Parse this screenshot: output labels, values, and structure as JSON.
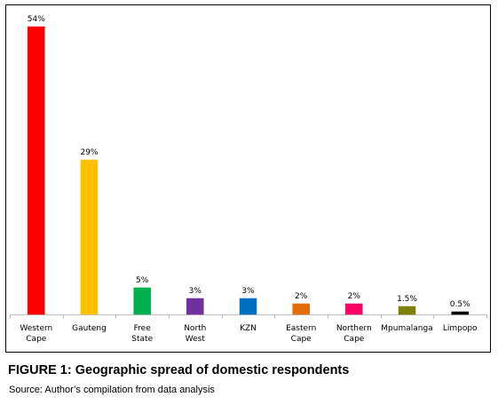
{
  "chart_data": {
    "type": "bar",
    "categories": [
      [
        "Western",
        "Cape"
      ],
      [
        "Gauteng"
      ],
      [
        "Free",
        "State"
      ],
      [
        "North",
        "West"
      ],
      [
        "KZN"
      ],
      [
        "Eastern",
        "Cape"
      ],
      [
        "Northern",
        "Cape"
      ],
      [
        "Mpumalanga"
      ],
      [
        "Limpopo"
      ]
    ],
    "values": [
      54,
      29,
      5,
      3,
      3,
      2,
      2,
      1.5,
      0.5
    ],
    "data_labels": [
      "54%",
      "29%",
      "5%",
      "3%",
      "3%",
      "2%",
      "2%",
      "1.5%",
      "0.5%"
    ],
    "colors": [
      "#ff0000",
      "#ffc000",
      "#00b050",
      "#7030a0",
      "#0070c0",
      "#e36c09",
      "#ff0066",
      "#7f7f00",
      "#000000"
    ],
    "ylim": [
      0,
      54
    ],
    "grid": false,
    "legend": "none"
  },
  "caption": {
    "title": "FIGURE 1: Geographic spread of domestic respondents",
    "source": "Source: Author’s compilation from data analysis"
  }
}
